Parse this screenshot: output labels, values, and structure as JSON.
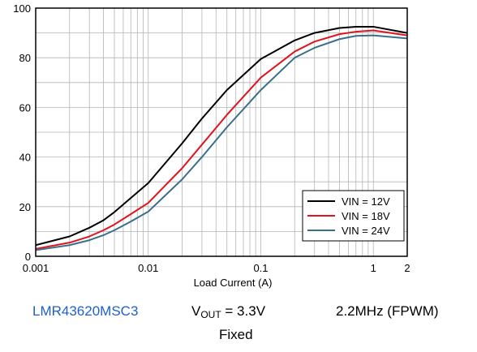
{
  "chart_data": {
    "type": "line",
    "xlabel": "Load Current (A)",
    "ylabel": "",
    "xscale": "log",
    "xlim": [
      0.001,
      2
    ],
    "ylim": [
      0,
      100
    ],
    "xticks": [
      {
        "value": 0.001,
        "label": "0.001"
      },
      {
        "value": 0.01,
        "label": "0.01"
      },
      {
        "value": 0.1,
        "label": "0.1"
      },
      {
        "value": 1,
        "label": "1"
      },
      {
        "value": 2,
        "label": "2"
      }
    ],
    "yticks": [
      {
        "value": 0,
        "label": "0"
      },
      {
        "value": 20,
        "label": "20"
      },
      {
        "value": 40,
        "label": "40"
      },
      {
        "value": 60,
        "label": "60"
      },
      {
        "value": 80,
        "label": "80"
      },
      {
        "value": 100,
        "label": "100"
      }
    ],
    "grid": true,
    "legend_position": "bottom-right",
    "x": [
      0.001,
      0.002,
      0.003,
      0.004,
      0.005,
      0.007,
      0.01,
      0.02,
      0.03,
      0.05,
      0.1,
      0.2,
      0.3,
      0.5,
      0.7,
      1,
      2
    ],
    "series": [
      {
        "name": "VIN = 12V",
        "color": "#000000",
        "values": [
          4.5,
          8,
          11.5,
          14.5,
          17.8,
          23.5,
          29.5,
          45.5,
          55.5,
          67,
          79.5,
          87,
          90,
          92,
          92.5,
          92.5,
          90
        ]
      },
      {
        "name": "VIN = 18V",
        "color": "#e0141e",
        "values": [
          3,
          5.5,
          8,
          10.5,
          12.8,
          17,
          21.5,
          35.5,
          45,
          57,
          72,
          82.5,
          86.5,
          89.5,
          90.5,
          91,
          89
        ]
      },
      {
        "name": "VIN = 24V",
        "color": "#3a6f8a",
        "values": [
          2.5,
          4.5,
          6.5,
          8.5,
          10.5,
          14,
          18,
          31,
          40,
          52,
          67,
          80,
          84,
          87.5,
          88.8,
          89,
          87.8
        ]
      }
    ]
  },
  "caption": {
    "part_number": "LMR43620MSC3",
    "vout_prefix": "V",
    "vout_sub": "OUT",
    "vout_value": " = 3.3V",
    "mode": "2.2MHz (FPWM)",
    "config": "Fixed"
  }
}
